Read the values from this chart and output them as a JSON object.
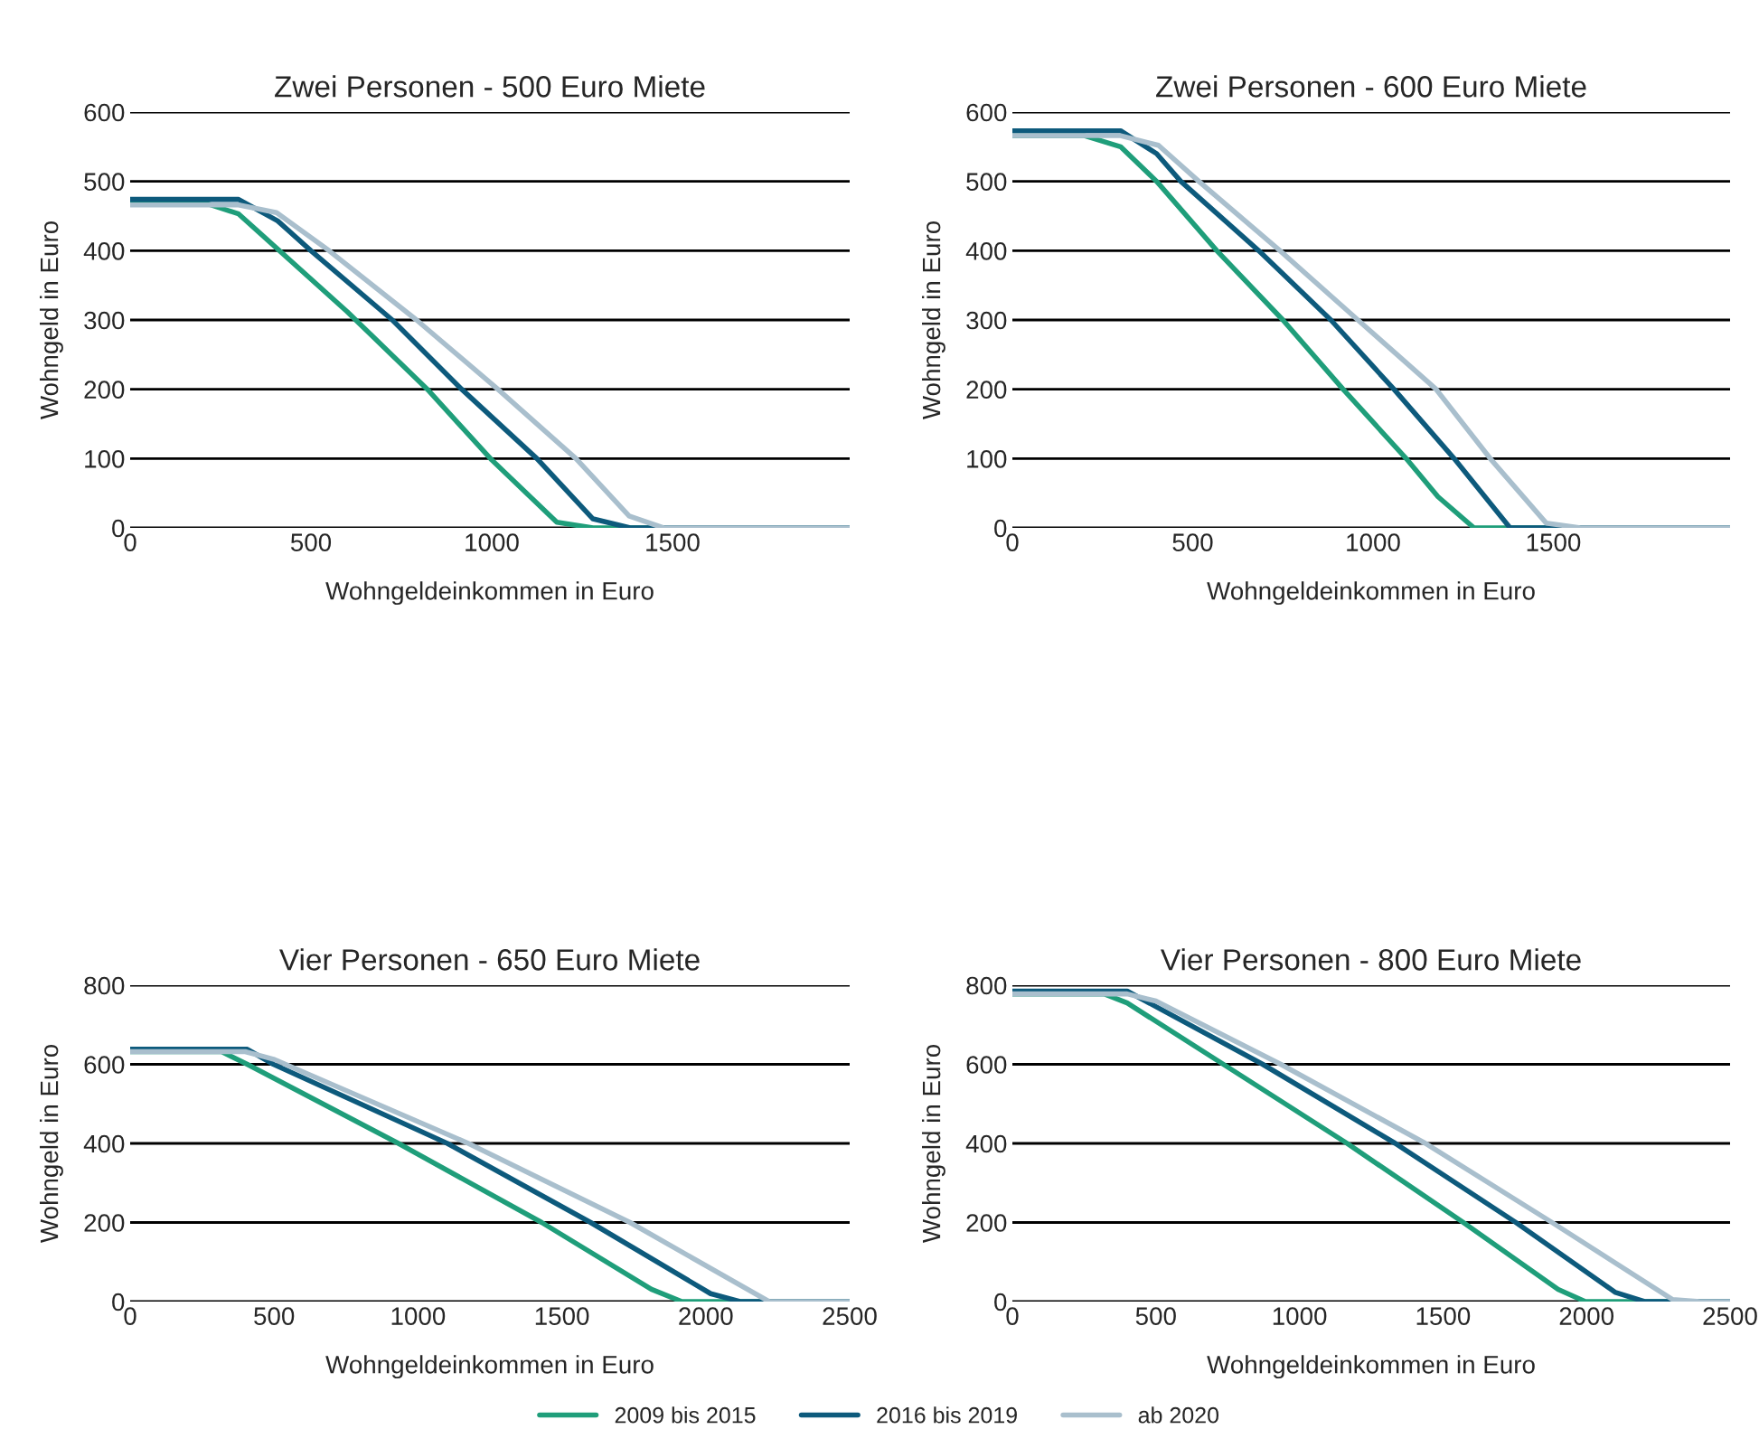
{
  "chart_data": [
    {
      "type": "line",
      "title": "Zwei Personen - 500 Euro Miete",
      "xlabel": "Wohngeldeinkommen in Euro",
      "ylabel": "Wohngeld in Euro",
      "xlim": [
        0,
        1990
      ],
      "ylim": [
        0,
        600
      ],
      "xticks": [
        0,
        500,
        1000,
        1500
      ],
      "yticks": [
        0,
        100,
        200,
        300,
        400,
        500,
        600
      ],
      "grid": "y",
      "legend": "bottom",
      "line_style": "solid",
      "marker": "none",
      "series": [
        {
          "name": "2009 bis 2015",
          "color": "#1f9e7a",
          "x": [
            0,
            200,
            300,
            600,
            822,
            1000,
            1180,
            1280,
            1990
          ],
          "values": [
            470,
            470,
            453,
            312,
            200,
            98,
            8,
            0,
            0
          ]
        },
        {
          "name": "2016 bis 2019",
          "color": "#0d5a7c",
          "x": [
            0,
            300,
            408,
            500,
            725,
            917,
            1125,
            1280,
            1383,
            1990
          ],
          "values": [
            474,
            474,
            443,
            400,
            300,
            200,
            100,
            13,
            0,
            0
          ]
        },
        {
          "name": "ab 2020",
          "color": "#a9bfcd",
          "x": [
            0,
            300,
            405,
            550,
            792,
            1017,
            1233,
            1380,
            1475,
            1990
          ],
          "values": [
            466,
            466,
            455,
            400,
            300,
            200,
            100,
            17,
            0,
            0
          ]
        }
      ]
    },
    {
      "type": "line",
      "title": "Zwei Personen - 600 Euro Miete",
      "xlabel": "Wohngeldeinkommen in Euro",
      "ylabel": "Wohngeld in Euro",
      "xlim": [
        0,
        1990
      ],
      "ylim": [
        0,
        600
      ],
      "xticks": [
        0,
        500,
        1000,
        1500
      ],
      "yticks": [
        0,
        100,
        200,
        300,
        400,
        500,
        600
      ],
      "grid": "y",
      "legend": "bottom",
      "line_style": "solid",
      "marker": "none",
      "series": [
        {
          "name": "2009 bis 2015",
          "color": "#1f9e7a",
          "x": [
            0,
            200,
            300,
            400,
            567,
            750,
            917,
            1092,
            1180,
            1280,
            1990
          ],
          "values": [
            566,
            566,
            550,
            500,
            400,
            300,
            200,
            100,
            45,
            0,
            0
          ]
        },
        {
          "name": "2016 bis 2019",
          "color": "#0d5a7c",
          "x": [
            0,
            300,
            400,
            467,
            683,
            883,
            1058,
            1225,
            1380,
            1990
          ],
          "values": [
            573,
            573,
            540,
            500,
            400,
            300,
            200,
            100,
            0,
            0
          ]
        },
        {
          "name": "ab 2020",
          "color": "#a9bfcd",
          "x": [
            0,
            300,
            405,
            517,
            742,
            958,
            1175,
            1325,
            1480,
            1575,
            1990
          ],
          "values": [
            566,
            566,
            552,
            500,
            400,
            300,
            200,
            100,
            7,
            0,
            0
          ]
        }
      ]
    },
    {
      "type": "line",
      "title": "Vier Personen - 650 Euro Miete",
      "xlabel": "Wohngeldeinkommen in Euro",
      "ylabel": "Wohngeld in Euro",
      "xlim": [
        0,
        2500
      ],
      "ylim": [
        0,
        800
      ],
      "xticks": [
        0,
        500,
        1000,
        1500,
        2000,
        2500
      ],
      "yticks": [
        0,
        200,
        400,
        600,
        800
      ],
      "grid": "y",
      "legend": "bottom",
      "line_style": "solid",
      "marker": "none",
      "series": [
        {
          "name": "2009 bis 2015",
          "color": "#1f9e7a",
          "x": [
            0,
            318,
            407,
            932,
            1430,
            1811,
            1917,
            2500
          ],
          "values": [
            632,
            632,
            600,
            400,
            200,
            31,
            0,
            0
          ]
        },
        {
          "name": "2016 bis 2019",
          "color": "#0d5a7c",
          "x": [
            0,
            407,
            498,
            1102,
            1600,
            2017,
            2119,
            2500
          ],
          "values": [
            638,
            638,
            600,
            400,
            200,
            20,
            0,
            0
          ]
        },
        {
          "name": "ab 2020",
          "color": "#a9bfcd",
          "x": [
            0,
            400,
            498,
            1175,
            1737,
            2220,
            2500
          ],
          "values": [
            632,
            632,
            613,
            400,
            200,
            0,
            0
          ]
        }
      ]
    },
    {
      "type": "line",
      "title": "Vier Personen - 800 Euro Miete",
      "xlabel": "Wohngeldeinkommen in Euro",
      "ylabel": "Wohngeld in Euro",
      "xlim": [
        0,
        2500
      ],
      "ylim": [
        0,
        800
      ],
      "xticks": [
        0,
        500,
        1000,
        1500,
        2000,
        2500
      ],
      "yticks": [
        0,
        200,
        400,
        600,
        800
      ],
      "grid": "y",
      "legend": "bottom",
      "line_style": "solid",
      "marker": "none",
      "series": [
        {
          "name": "2009 bis 2015",
          "color": "#1f9e7a",
          "x": [
            0,
            320,
            400,
            735,
            1166,
            1571,
            1901,
            1996,
            2500
          ],
          "values": [
            778,
            778,
            755,
            600,
            400,
            200,
            31,
            0,
            0
          ]
        },
        {
          "name": "2016 bis 2019",
          "color": "#0d5a7c",
          "x": [
            0,
            400,
            872,
            1334,
            1754,
            2101,
            2202,
            2500
          ],
          "values": [
            785,
            785,
            600,
            400,
            200,
            23,
            0,
            0
          ]
        },
        {
          "name": "ab 2020",
          "color": "#a9bfcd",
          "x": [
            0,
            400,
            500,
            935,
            1439,
            1880,
            2300,
            2395,
            2500
          ],
          "values": [
            778,
            778,
            760,
            600,
            400,
            200,
            5,
            0,
            0
          ]
        }
      ]
    }
  ]
}
